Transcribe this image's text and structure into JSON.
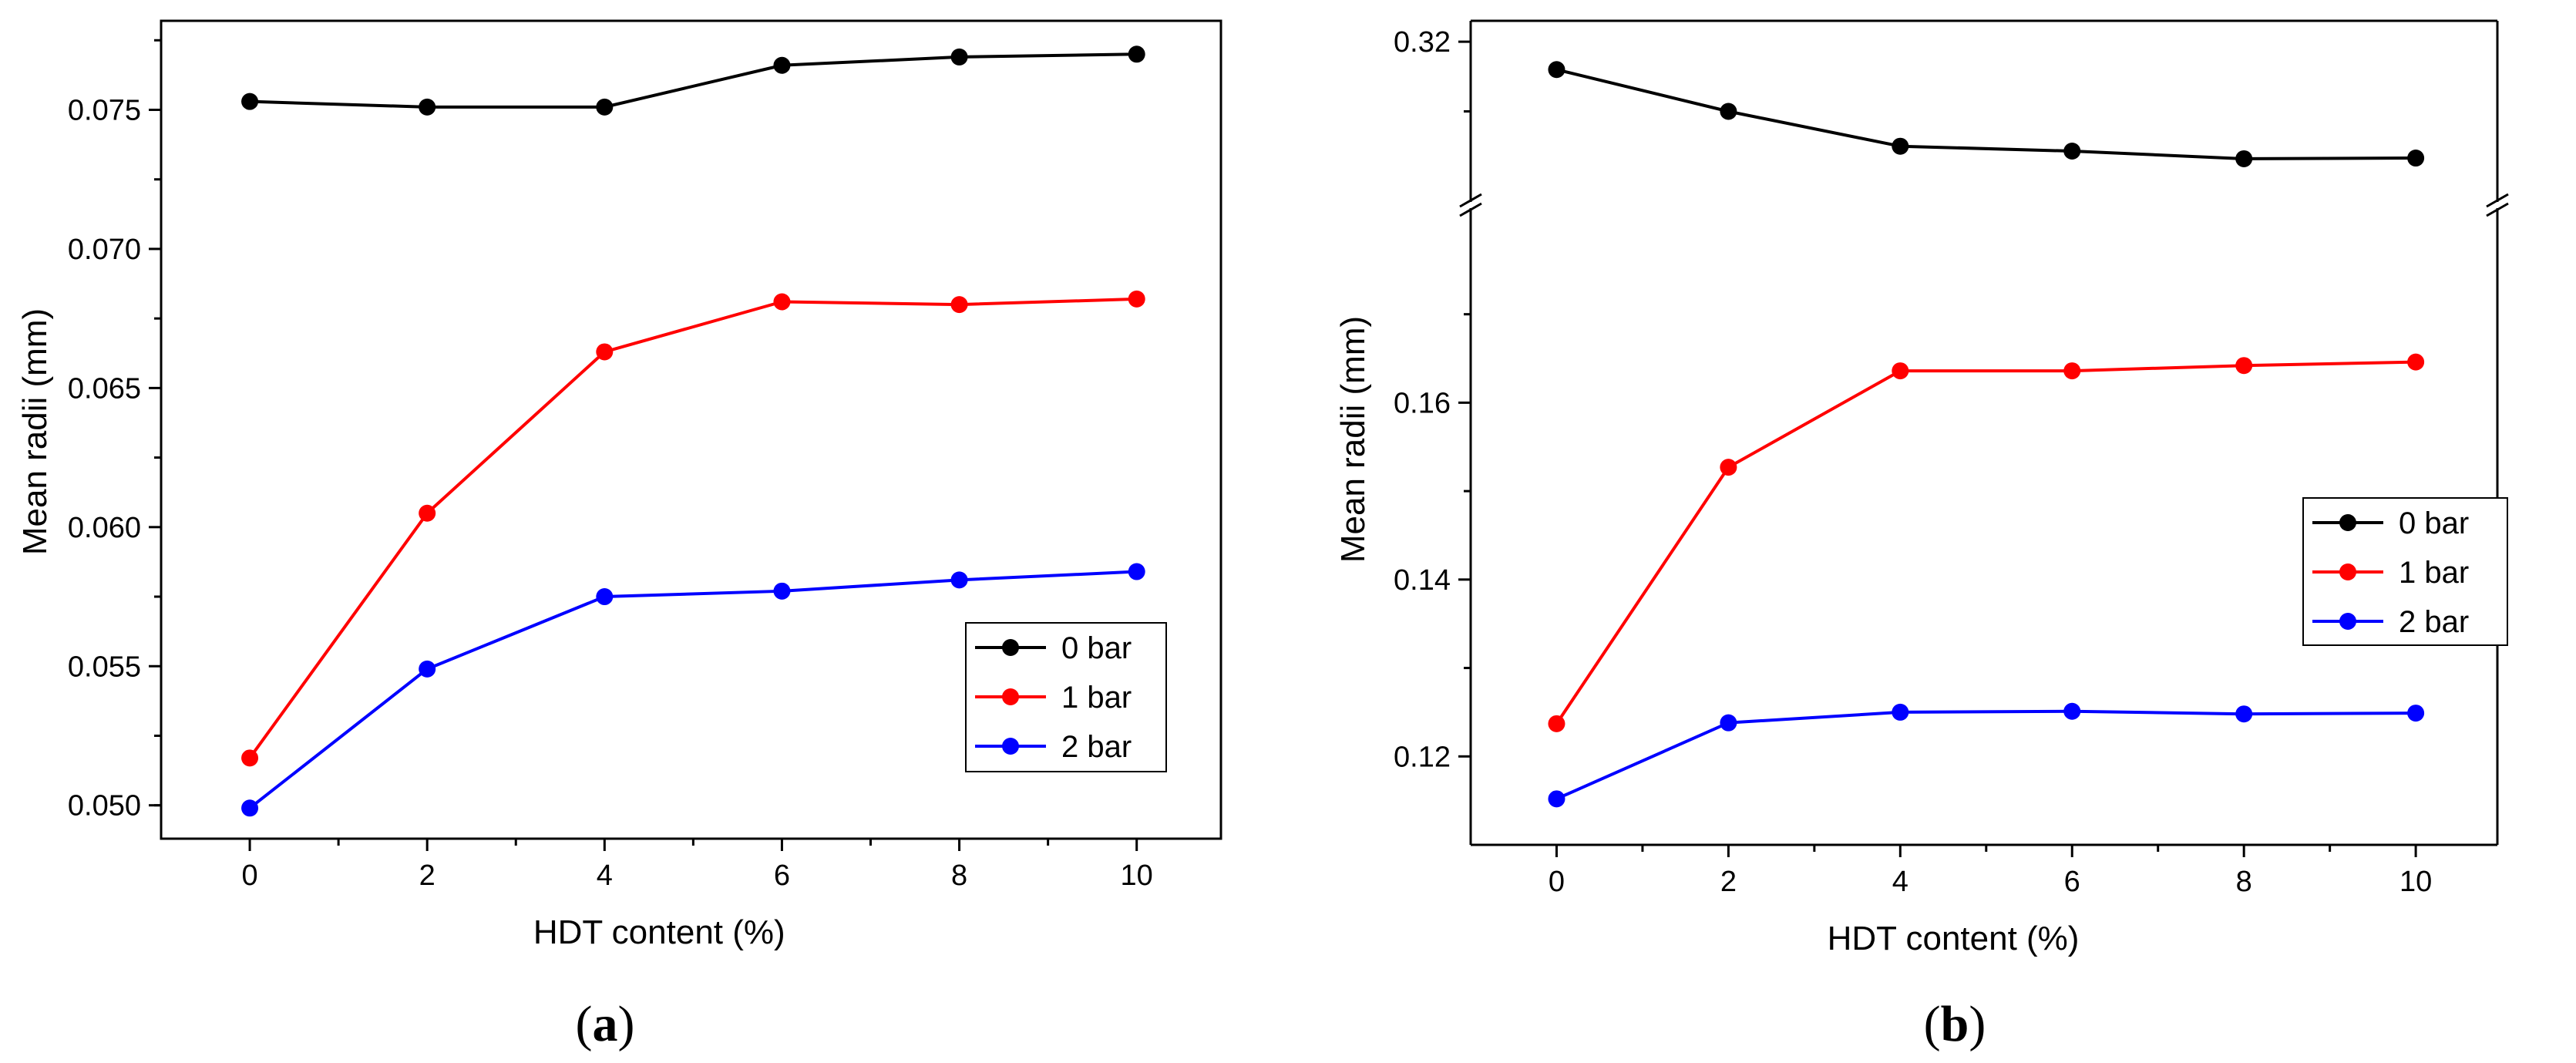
{
  "chart_data": [
    {
      "type": "line",
      "panel_label": "(a)",
      "panel_letter": "a",
      "xlabel": "HDT content (%)",
      "ylabel": "Mean radii (mm)",
      "x": [
        0,
        2,
        4,
        6,
        8,
        10
      ],
      "x_ticks": [
        "0",
        "2",
        "4",
        "6",
        "8",
        "10"
      ],
      "xlim": [
        -1,
        10.95
      ],
      "ylim": [
        0.0488,
        0.0782
      ],
      "y_ticks": [
        0.05,
        0.055,
        0.06,
        0.065,
        0.07,
        0.075
      ],
      "y_tick_labels": [
        "0.050",
        "0.055",
        "0.060",
        "0.065",
        "0.070",
        "0.075"
      ],
      "legend_position": "lower-right",
      "series": [
        {
          "name": "0 bar",
          "color": "#000000",
          "values": [
            0.0753,
            0.0751,
            0.0751,
            0.0766,
            0.0769,
            0.077
          ]
        },
        {
          "name": "1 bar",
          "color": "#ff0000",
          "values": [
            0.0517,
            0.0605,
            0.0663,
            0.0681,
            0.068,
            0.0682
          ]
        },
        {
          "name": "2 bar",
          "color": "#0000ff",
          "values": [
            0.0499,
            0.0549,
            0.0575,
            0.0577,
            0.0581,
            0.0584
          ]
        }
      ]
    },
    {
      "type": "line",
      "panel_label": "(b)",
      "panel_letter": "b",
      "xlabel": "HDT content (%)",
      "ylabel": "Mean radii (mm)",
      "x": [
        0,
        2,
        4,
        6,
        8,
        10
      ],
      "x_ticks": [
        "0",
        "2",
        "4",
        "6",
        "8",
        "10"
      ],
      "xlim": [
        -1,
        10.95
      ],
      "broken_axis": true,
      "y_segments": [
        {
          "ylim": [
            0.11,
            0.182
          ],
          "ticks": [
            0.12,
            0.14,
            0.16
          ],
          "tick_labels": [
            "0.12",
            "0.14",
            "0.16"
          ]
        },
        {
          "ylim": [
            0.297,
            0.323
          ],
          "ticks": [
            0.32
          ],
          "tick_labels": [
            "0.32"
          ]
        }
      ],
      "legend_position": "right",
      "series": [
        {
          "name": "0 bar",
          "color": "#000000",
          "values": [
            0.316,
            0.31,
            0.305,
            0.3043,
            0.3032,
            0.3033
          ]
        },
        {
          "name": "1 bar",
          "color": "#ff0000",
          "values": [
            0.1237,
            0.1527,
            0.1636,
            0.1636,
            0.1642,
            0.1646
          ]
        },
        {
          "name": "2 bar",
          "color": "#0000ff",
          "values": [
            0.1152,
            0.1238,
            0.125,
            0.1251,
            0.1248,
            0.1249
          ]
        }
      ]
    }
  ]
}
